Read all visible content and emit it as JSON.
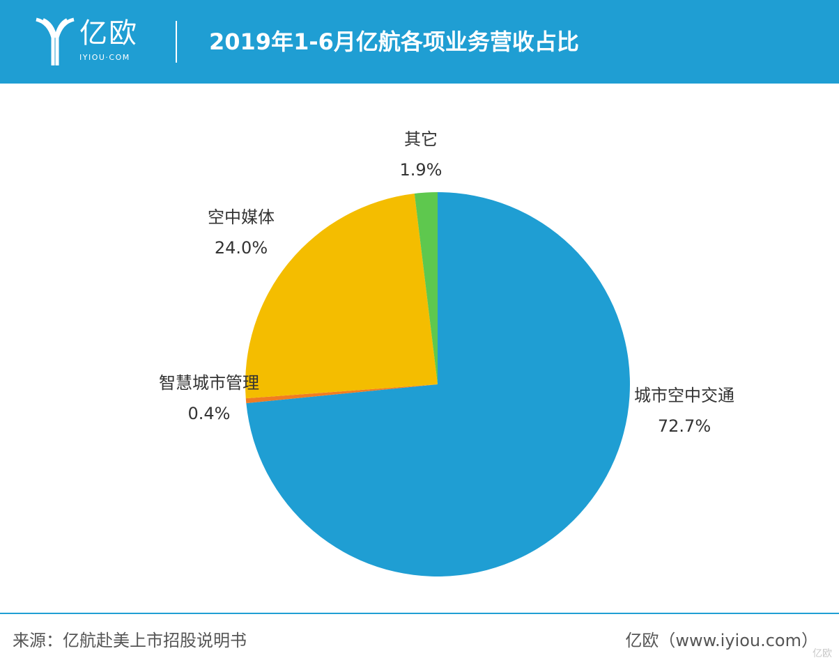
{
  "header": {
    "logo_text": "亿欧",
    "logo_subtext": "IYIOU·COM",
    "title": "2019年1-6月亿航各项业务营收占比",
    "background_color": "#1f9ed3"
  },
  "chart_data": {
    "type": "pie",
    "title": "2019年1-6月亿航各项业务营收占比",
    "slices": [
      {
        "label": "城市空中交通",
        "value": 72.7,
        "display": "72.7%",
        "color": "#1f9ed3"
      },
      {
        "label": "智慧城市管理",
        "value": 0.4,
        "display": "0.4%",
        "color": "#f07c22"
      },
      {
        "label": "空中媒体",
        "value": 24.0,
        "display": "24.0%",
        "color": "#f4bd00"
      },
      {
        "label": "其它",
        "value": 1.9,
        "display": "1.9%",
        "color": "#5ec84e"
      }
    ],
    "start": "12 o'clock",
    "direction": "clockwise"
  },
  "footer": {
    "source": "来源：亿航赴美上市招股说明书",
    "credit": "亿欧（www.iyiou.com）",
    "watermark": "亿欧"
  }
}
